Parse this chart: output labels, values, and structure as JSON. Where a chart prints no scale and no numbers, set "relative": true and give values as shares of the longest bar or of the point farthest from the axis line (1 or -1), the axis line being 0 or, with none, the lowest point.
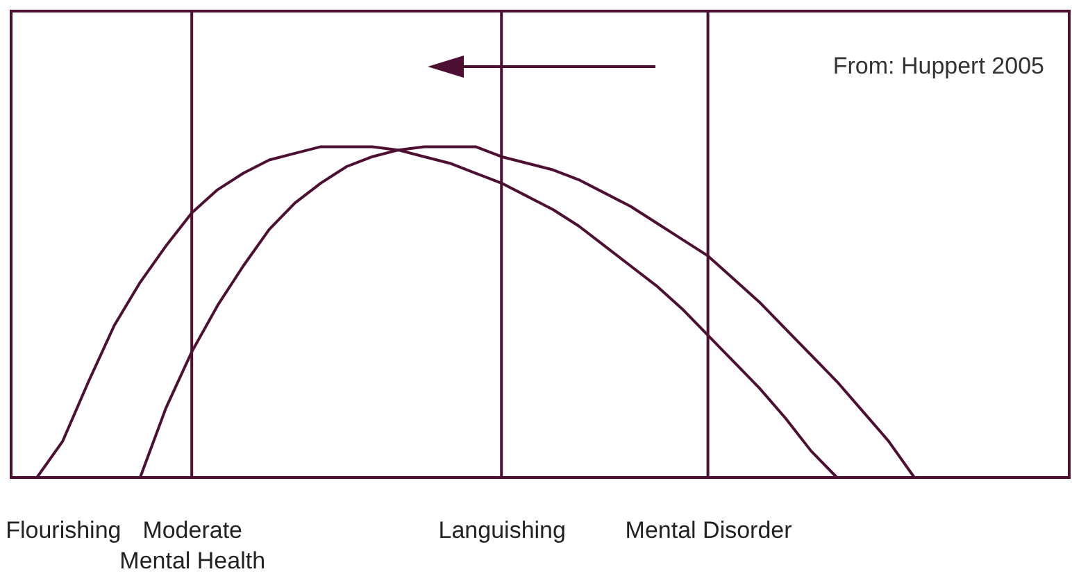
{
  "chart_data": {
    "type": "line",
    "relative": true,
    "line_style": "solid",
    "categories": [
      null,
      null,
      "Flourishing",
      null,
      null,
      null,
      null,
      "Moderate Mental Health",
      null,
      null,
      null,
      null,
      null,
      null,
      null,
      null,
      null,
      null,
      null,
      "Languishing",
      null,
      null,
      null,
      null,
      null,
      null,
      null,
      "Mental Disorder",
      null,
      null,
      null,
      null,
      null,
      null,
      null,
      null,
      null,
      null,
      null,
      null,
      null,
      null
    ],
    "series": [
      {
        "color": "#4d1033",
        "values": [
          null,
          0,
          0.11,
          0.29,
          0.46,
          0.59,
          0.7,
          0.8,
          0.87,
          0.92,
          0.96,
          0.98,
          1,
          1,
          1,
          0.99,
          0.97,
          0.95,
          0.92,
          0.89,
          0.85,
          0.81,
          0.76,
          0.7,
          0.64,
          0.58,
          0.51,
          0.43,
          0.35,
          0.27,
          0.18,
          0.08,
          0,
          null,
          null,
          null,
          null,
          null,
          null,
          null,
          null,
          null
        ]
      },
      {
        "color": "#4d1033",
        "values": [
          null,
          null,
          null,
          null,
          null,
          0,
          0.21,
          0.38,
          0.52,
          0.64,
          0.75,
          0.83,
          0.89,
          0.94,
          0.97,
          0.99,
          1,
          1,
          1,
          0.97,
          0.95,
          0.93,
          0.9,
          0.86,
          0.82,
          0.77,
          0.72,
          0.67,
          0.6,
          0.53,
          0.45,
          0.37,
          0.29,
          0.2,
          0.11,
          0,
          null,
          null,
          null,
          null,
          null,
          null
        ]
      }
    ],
    "ref_lines": [
      {
        "axis": "x",
        "value": "Moderate Mental Health"
      },
      {
        "axis": "x",
        "value": "Languishing"
      },
      {
        "axis": "x",
        "value": "Mental Disorder"
      }
    ],
    "annotations": [
      "From: Huppert 2005"
    ]
  }
}
